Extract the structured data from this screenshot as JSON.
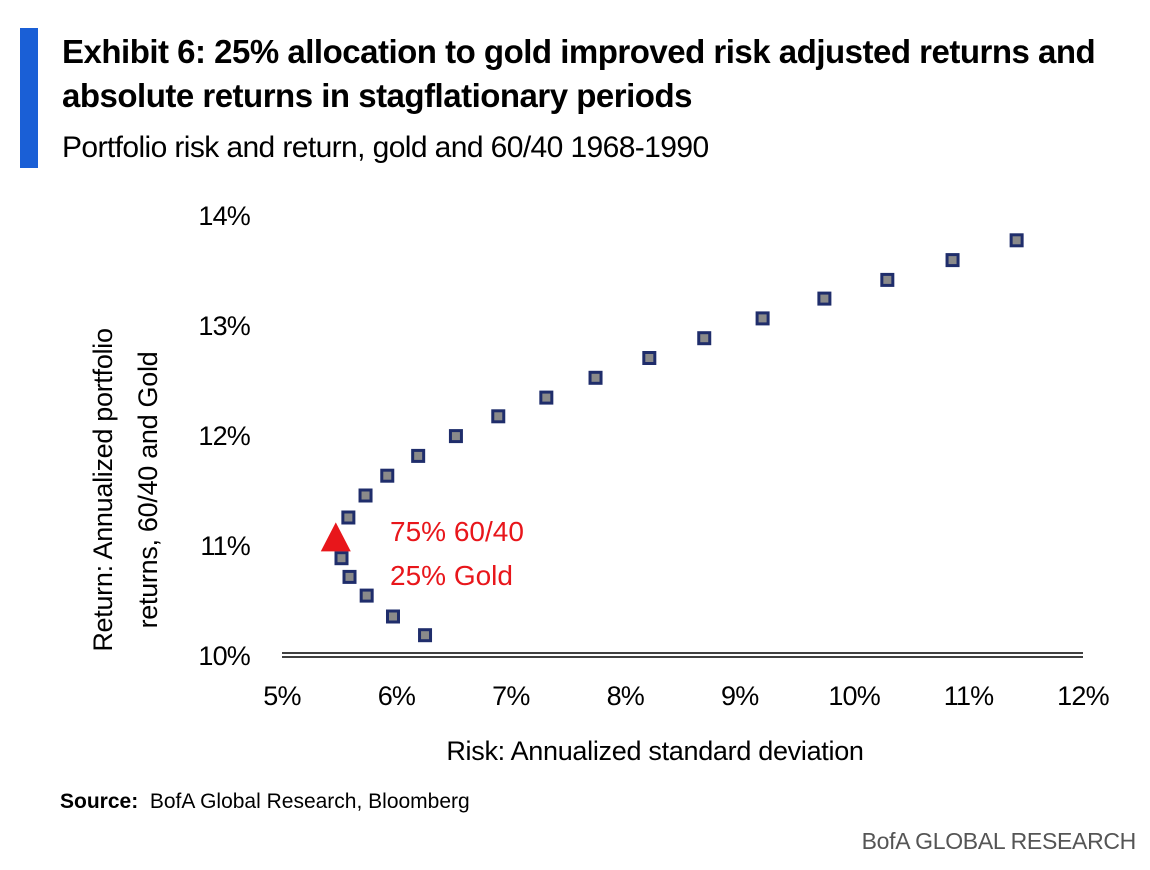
{
  "header": {
    "title": "Exhibit 6: 25% allocation to gold improved risk adjusted returns and absolute returns in stagflationary periods",
    "subtitle": "Portfolio risk and return, gold and 60/40 1968-1990"
  },
  "footer": {
    "source_label": "Source:",
    "source_text": "BofA Global Research, Bloomberg",
    "brand": "BofA GLOBAL RESEARCH"
  },
  "colors": {
    "accent": "#1a5fd6",
    "marker": "#1f2d6b",
    "highlight": "#e8161b"
  },
  "chart_data": {
    "type": "scatter",
    "title": "",
    "xlabel": "Risk: Annualized standard deviation",
    "ylabel": "Return: Annualized portfolio returns, 60/40 and Gold",
    "xlim": [
      5,
      12
    ],
    "ylim": [
      10,
      14
    ],
    "x_ticks": [
      "5%",
      "6%",
      "7%",
      "8%",
      "9%",
      "10%",
      "11%",
      "12%"
    ],
    "y_ticks": [
      "10%",
      "11%",
      "12%",
      "13%",
      "14%"
    ],
    "grid": false,
    "series": [
      {
        "marker": "square",
        "points": [
          {
            "x": 6.25,
            "y": 10.18
          },
          {
            "x": 5.97,
            "y": 10.35
          },
          {
            "x": 5.74,
            "y": 10.54
          },
          {
            "x": 5.59,
            "y": 10.71
          },
          {
            "x": 5.52,
            "y": 10.88
          },
          {
            "x": 5.58,
            "y": 11.25
          },
          {
            "x": 5.73,
            "y": 11.45
          },
          {
            "x": 5.92,
            "y": 11.63
          },
          {
            "x": 6.19,
            "y": 11.81
          },
          {
            "x": 6.52,
            "y": 11.99
          },
          {
            "x": 6.89,
            "y": 12.17
          },
          {
            "x": 7.31,
            "y": 12.34
          },
          {
            "x": 7.74,
            "y": 12.52
          },
          {
            "x": 8.21,
            "y": 12.7
          },
          {
            "x": 8.69,
            "y": 12.88
          },
          {
            "x": 9.2,
            "y": 13.06
          },
          {
            "x": 9.74,
            "y": 13.24
          },
          {
            "x": 10.29,
            "y": 13.41
          },
          {
            "x": 10.86,
            "y": 13.59
          },
          {
            "x": 11.42,
            "y": 13.77
          }
        ]
      },
      {
        "marker": "triangle",
        "points": [
          {
            "x": 5.47,
            "y": 11.06
          }
        ]
      }
    ],
    "annotations": [
      "75% 60/40",
      "25% Gold"
    ]
  }
}
